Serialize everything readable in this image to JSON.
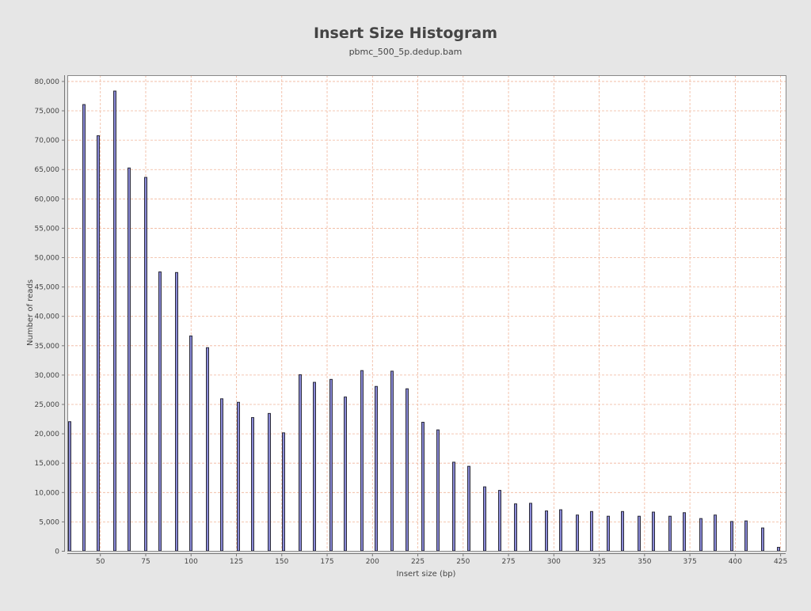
{
  "chart_data": {
    "type": "bar",
    "title": "Insert Size Histogram",
    "subtitle": "pbmc_500_5p.dedup.bam",
    "xlabel": "Insert size (bp)",
    "ylabel": "Number of reads",
    "xlim": [
      32,
      428
    ],
    "ylim": [
      0,
      81000
    ],
    "xticks": [
      50,
      75,
      100,
      125,
      150,
      175,
      200,
      225,
      250,
      275,
      300,
      325,
      350,
      375,
      400,
      425
    ],
    "yticks": [
      0,
      5000,
      10000,
      15000,
      20000,
      25000,
      30000,
      35000,
      40000,
      45000,
      50000,
      55000,
      60000,
      65000,
      70000,
      75000,
      80000
    ],
    "ytick_labels": [
      "0",
      "5,000",
      "10,000",
      "15,000",
      "20,000",
      "25,000",
      "30,000",
      "35,000",
      "40,000",
      "45,000",
      "50,000",
      "55,000",
      "60,000",
      "65,000",
      "70,000",
      "75,000",
      "80,000"
    ],
    "grid": true,
    "legend": "none",
    "colors": {
      "bar_fill": "#8a8ad6",
      "bar_stroke": "#2b2b3a",
      "grid": "#f0b59a",
      "plot_bg": "#ffffff",
      "page_bg": "#e6e6e6",
      "frame": "#888888"
    },
    "series": [
      {
        "x": [
          32,
          41,
          49,
          58,
          66,
          75,
          83,
          92,
          100,
          109,
          117,
          126,
          134,
          143,
          151,
          160,
          168,
          177,
          185,
          194,
          202,
          211,
          219,
          228,
          236,
          245,
          253,
          262,
          270,
          279,
          287,
          296,
          304,
          313,
          321,
          330,
          338,
          347,
          355,
          364,
          372,
          381,
          389,
          398,
          406,
          415,
          424
        ],
        "values": [
          22000,
          76000,
          70700,
          78300,
          65200,
          63600,
          47500,
          47400,
          36600,
          34600,
          25900,
          25300,
          22700,
          23400,
          20100,
          30000,
          28700,
          29200,
          26200,
          30700,
          28000,
          30600,
          27600,
          21900,
          20600,
          15100,
          14400,
          10900,
          10300,
          8000,
          8100,
          6800,
          7000,
          6100,
          6700,
          5900,
          6700,
          5900,
          6600,
          5900,
          6500,
          5500,
          6100,
          5000,
          5100,
          3900,
          600
        ]
      }
    ]
  }
}
